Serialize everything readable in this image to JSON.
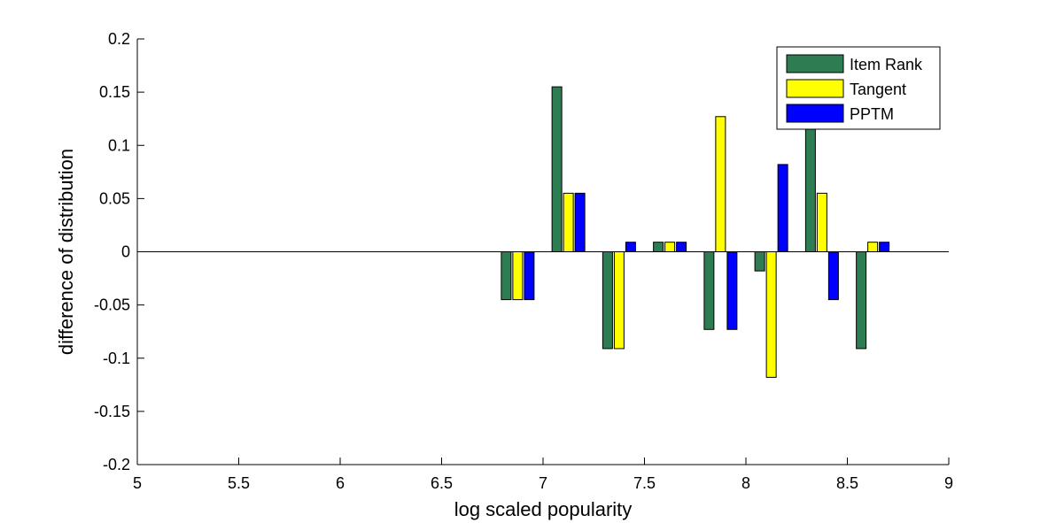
{
  "chart_data": {
    "type": "bar",
    "title": "",
    "xlabel": "log scaled popularity",
    "ylabel": "difference of distribution",
    "xlim": [
      5,
      9
    ],
    "ylim": [
      -0.2,
      0.2
    ],
    "x_ticks": [
      5,
      5.5,
      6,
      6.5,
      7,
      7.5,
      8,
      8.5,
      9
    ],
    "x_tick_labels": [
      "5",
      "5.5",
      "6",
      "6.5",
      "7",
      "7.5",
      "8",
      "8.5",
      "9"
    ],
    "y_ticks": [
      0.2,
      0.15,
      0.1,
      0.05,
      0,
      -0.05,
      -0.1,
      -0.15,
      -0.2
    ],
    "y_tick_labels": [
      "0.2",
      "0.15",
      "0.1",
      "0.05",
      "0",
      "-0.05",
      "-0.1",
      "-0.15",
      "-0.2"
    ],
    "grid": false,
    "legend_position": "top-right",
    "x": [
      6.875,
      7.125,
      7.375,
      7.625,
      7.875,
      8.125,
      8.375,
      8.625
    ],
    "series": [
      {
        "name": "Item Rank",
        "color": "#2e7d52",
        "values": [
          -0.045,
          0.155,
          -0.091,
          0.009,
          -0.073,
          -0.018,
          0.118,
          -0.091
        ]
      },
      {
        "name": "Tangent",
        "color": "#ffff00",
        "values": [
          -0.045,
          0.055,
          -0.091,
          0.009,
          0.127,
          -0.118,
          0.055,
          0.009
        ]
      },
      {
        "name": "PPTM",
        "color": "#0000ff",
        "values": [
          -0.045,
          0.055,
          0.009,
          0.009,
          -0.073,
          0.082,
          -0.045,
          0.009
        ]
      }
    ]
  }
}
